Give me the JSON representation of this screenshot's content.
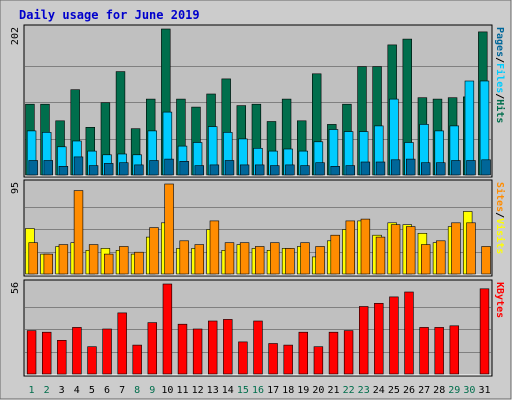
{
  "title": "Daily usage for June 2019",
  "colors": {
    "title": "#0000cc",
    "frame_bg": "#cccccc",
    "panel_bg": "#c0c0c0",
    "hits": "#006e4c",
    "files": "#00ccff",
    "pages": "#006699",
    "visits": "#ffff00",
    "sites": "#ff8c00",
    "kbytes": "#ff0000",
    "weekday_label": "#000000",
    "weekend_label": "#006e4c"
  },
  "chart_data": [
    {
      "type": "bar",
      "panel": "hits-files-pages",
      "ymax_label": "202",
      "ymax": 202,
      "legend": [
        "Pages",
        "Files",
        "Hits"
      ],
      "legend_sep": "/",
      "categories": [
        "1",
        "2",
        "3",
        "4",
        "5",
        "6",
        "7",
        "8",
        "9",
        "10",
        "11",
        "12",
        "13",
        "14",
        "15",
        "16",
        "17",
        "18",
        "19",
        "20",
        "21",
        "22",
        "23",
        "24",
        "25",
        "26",
        "27",
        "28",
        "29",
        "30",
        "31"
      ],
      "weekend": [
        "1",
        "2",
        "8",
        "9",
        "15",
        "16",
        "22",
        "23",
        "29",
        "30"
      ],
      "series": [
        {
          "name": "Hits",
          "values": [
            98,
            98,
            75,
            118,
            66,
            100,
            143,
            64,
            105,
            202,
            105,
            94,
            112,
            133,
            96,
            98,
            74,
            105,
            75,
            140,
            70,
            98,
            150,
            150,
            180,
            188,
            107,
            105,
            107,
            108,
            198
          ]
        },
        {
          "name": "Files",
          "values": [
            61,
            59,
            39,
            47,
            33,
            28,
            29,
            28,
            61,
            87,
            40,
            45,
            67,
            59,
            50,
            37,
            33,
            36,
            33,
            46,
            63,
            60,
            60,
            68,
            105,
            45,
            70,
            61,
            68,
            130,
            130
          ]
        },
        {
          "name": "Pages",
          "values": [
            20,
            20,
            12,
            25,
            13,
            16,
            17,
            14,
            20,
            22,
            19,
            13,
            14,
            20,
            14,
            14,
            13,
            14,
            13,
            17,
            12,
            13,
            18,
            18,
            21,
            22,
            17,
            17,
            20,
            20,
            21
          ]
        }
      ]
    },
    {
      "type": "bar",
      "panel": "visits-sites",
      "ymax_label": "95",
      "ymax": 95,
      "legend": [
        "Sites",
        "Visits"
      ],
      "legend_sep": "/",
      "categories": [
        "1",
        "2",
        "3",
        "4",
        "5",
        "6",
        "7",
        "8",
        "9",
        "10",
        "11",
        "12",
        "13",
        "14",
        "15",
        "16",
        "17",
        "18",
        "19",
        "20",
        "21",
        "22",
        "23",
        "24",
        "25",
        "26",
        "27",
        "28",
        "29",
        "30",
        "31"
      ],
      "weekend": [
        "1",
        "2",
        "8",
        "9",
        "15",
        "16",
        "22",
        "23",
        "29",
        "30"
      ],
      "series": [
        {
          "name": "Visits",
          "values": [
            48,
            21,
            29,
            33,
            25,
            27,
            25,
            21,
            39,
            54,
            27,
            27,
            47,
            25,
            31,
            27,
            25,
            27,
            29,
            18,
            35,
            47,
            56,
            41,
            54,
            52,
            43,
            33,
            50,
            66,
            0
          ]
        },
        {
          "name": "Sites",
          "values": [
            33,
            21,
            31,
            88,
            31,
            21,
            29,
            23,
            49,
            95,
            35,
            31,
            56,
            33,
            33,
            29,
            33,
            27,
            33,
            29,
            41,
            56,
            58,
            39,
            52,
            50,
            31,
            35,
            54,
            54,
            29
          ]
        }
      ]
    },
    {
      "type": "bar",
      "panel": "kbytes",
      "ymax_label": "56",
      "ymax": 56,
      "legend": [
        "KBytes"
      ],
      "legend_sep": "/",
      "categories": [
        "1",
        "2",
        "3",
        "4",
        "5",
        "6",
        "7",
        "8",
        "9",
        "10",
        "11",
        "12",
        "13",
        "14",
        "15",
        "16",
        "17",
        "18",
        "19",
        "20",
        "21",
        "22",
        "23",
        "24",
        "25",
        "26",
        "27",
        "28",
        "29",
        "30",
        "31"
      ],
      "weekend": [
        "1",
        "2",
        "8",
        "9",
        "15",
        "16",
        "22",
        "23",
        "29",
        "30"
      ],
      "series": [
        {
          "name": "KBytes",
          "values": [
            27,
            26,
            21,
            29,
            17,
            28,
            38,
            18,
            32,
            56,
            31,
            28,
            33,
            34,
            20,
            33,
            19,
            18,
            26,
            17,
            26,
            27,
            42,
            44,
            48,
            51,
            29,
            29,
            30,
            0,
            53
          ]
        }
      ]
    }
  ]
}
